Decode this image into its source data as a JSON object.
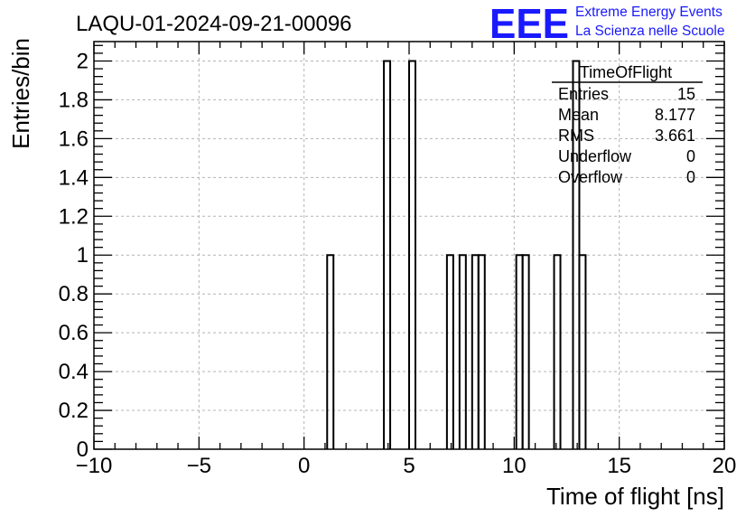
{
  "chart_data": {
    "type": "histogram",
    "title": "LAQU-01-2024-09-21-00096",
    "xlabel": "Time of flight [ns]",
    "ylabel": "Entries/bin",
    "xlim": [
      -10,
      20
    ],
    "ylim": [
      0,
      2.1
    ],
    "grid": true,
    "x_ticks": [
      -10,
      -5,
      0,
      5,
      10,
      15,
      20
    ],
    "x_tick_labels": [
      "−10",
      "−5",
      "0",
      "5",
      "10",
      "15",
      "20"
    ],
    "y_ticks": [
      0,
      0.2,
      0.4,
      0.6,
      0.8,
      1,
      1.2,
      1.4,
      1.6,
      1.8,
      2
    ],
    "y_tick_labels": [
      "0",
      "0.2",
      "0.4",
      "0.6",
      "0.8",
      "1",
      "1.2",
      "1.4",
      "1.6",
      "1.8",
      "2"
    ],
    "bin_width": 0.3,
    "bins": [
      {
        "x0": 1.1,
        "x1": 1.4,
        "count": 1
      },
      {
        "x0": 3.8,
        "x1": 4.1,
        "count": 2
      },
      {
        "x0": 5.0,
        "x1": 5.3,
        "count": 2
      },
      {
        "x0": 6.8,
        "x1": 7.1,
        "count": 1
      },
      {
        "x0": 7.4,
        "x1": 7.7,
        "count": 1
      },
      {
        "x0": 8.0,
        "x1": 8.3,
        "count": 1
      },
      {
        "x0": 8.3,
        "x1": 8.6,
        "count": 1
      },
      {
        "x0": 10.1,
        "x1": 10.4,
        "count": 1
      },
      {
        "x0": 10.4,
        "x1": 10.7,
        "count": 1
      },
      {
        "x0": 11.9,
        "x1": 12.2,
        "count": 1
      },
      {
        "x0": 12.8,
        "x1": 13.1,
        "count": 2
      },
      {
        "x0": 13.1,
        "x1": 13.4,
        "count": 1
      }
    ],
    "stats": {
      "name": "TimeOfFlight",
      "rows": [
        {
          "label": "Entries",
          "value": "15"
        },
        {
          "label": "Mean",
          "value": "8.177"
        },
        {
          "label": "RMS",
          "value": "3.661"
        },
        {
          "label": "Underflow",
          "value": "0"
        },
        {
          "label": "Overflow",
          "value": "0"
        }
      ]
    }
  },
  "logo": {
    "mark": "EEE",
    "line1": "Extreme Energy Events",
    "line2": "La Scienza nelle Scuole",
    "color": "#1a1aff"
  },
  "colors": {
    "axis": "#000000",
    "grid": "#b4b4b4",
    "hist": "#000000"
  }
}
